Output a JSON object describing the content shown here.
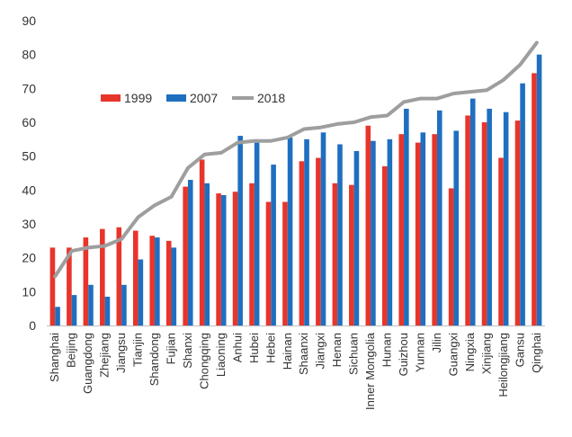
{
  "chart_data": {
    "type": "bar",
    "title": "",
    "xlabel": "",
    "ylabel": "",
    "ylim": [
      0,
      90
    ],
    "yticks": [
      0,
      10,
      20,
      30,
      40,
      50,
      60,
      70,
      80,
      90
    ],
    "grid": false,
    "legend_position": "top-left",
    "categories": [
      "Shanghai",
      "Beijing",
      "Guangdong",
      "Zhejiang",
      "Jiangsu",
      "Tianjin",
      "Shandong",
      "Fujian",
      "Shanxi",
      "Chongqing",
      "Liaoning",
      "Anhui",
      "Hubei",
      "Hebei",
      "Hainan",
      "Shaanxi",
      "Jiangxi",
      "Henan",
      "Sichuan",
      "Inner Mongolia",
      "Hunan",
      "Guizhou",
      "Yunnan",
      "Jilin",
      "Guangxi",
      "Ningxia",
      "Xinjiang",
      "Heilongjiang",
      "Gansu",
      "Qinghai"
    ],
    "series": [
      {
        "name": "1999",
        "type": "bar",
        "color": "#e8352b",
        "values": [
          23,
          23,
          26,
          28.5,
          29,
          28,
          26.5,
          25,
          41,
          49,
          39,
          39.5,
          42,
          36.5,
          36.5,
          48.5,
          49.5,
          42,
          41.5,
          59,
          47,
          56.5,
          54,
          56.5,
          40.5,
          62,
          60,
          49.5,
          60.5,
          74.5
        ]
      },
      {
        "name": "2007",
        "type": "bar",
        "color": "#1f6fc0",
        "values": [
          5.5,
          9,
          12,
          8.5,
          12,
          19.5,
          26,
          23,
          43,
          42,
          38.5,
          56,
          54,
          47.5,
          55.5,
          55,
          57,
          53.5,
          51.5,
          54.5,
          55,
          64,
          57,
          63.5,
          57.5,
          67,
          64,
          63,
          71.5,
          80
        ]
      },
      {
        "name": "2018",
        "type": "line",
        "color": "#9e9e9e",
        "values": [
          14.5,
          22,
          23,
          23.5,
          25.5,
          32,
          35.5,
          38,
          46.5,
          50.5,
          51,
          54,
          54.5,
          54.5,
          55.5,
          58,
          58.5,
          59.5,
          60,
          61.5,
          62,
          66,
          67,
          67,
          68.5,
          69,
          69.5,
          72.5,
          77,
          83.5
        ]
      }
    ]
  }
}
